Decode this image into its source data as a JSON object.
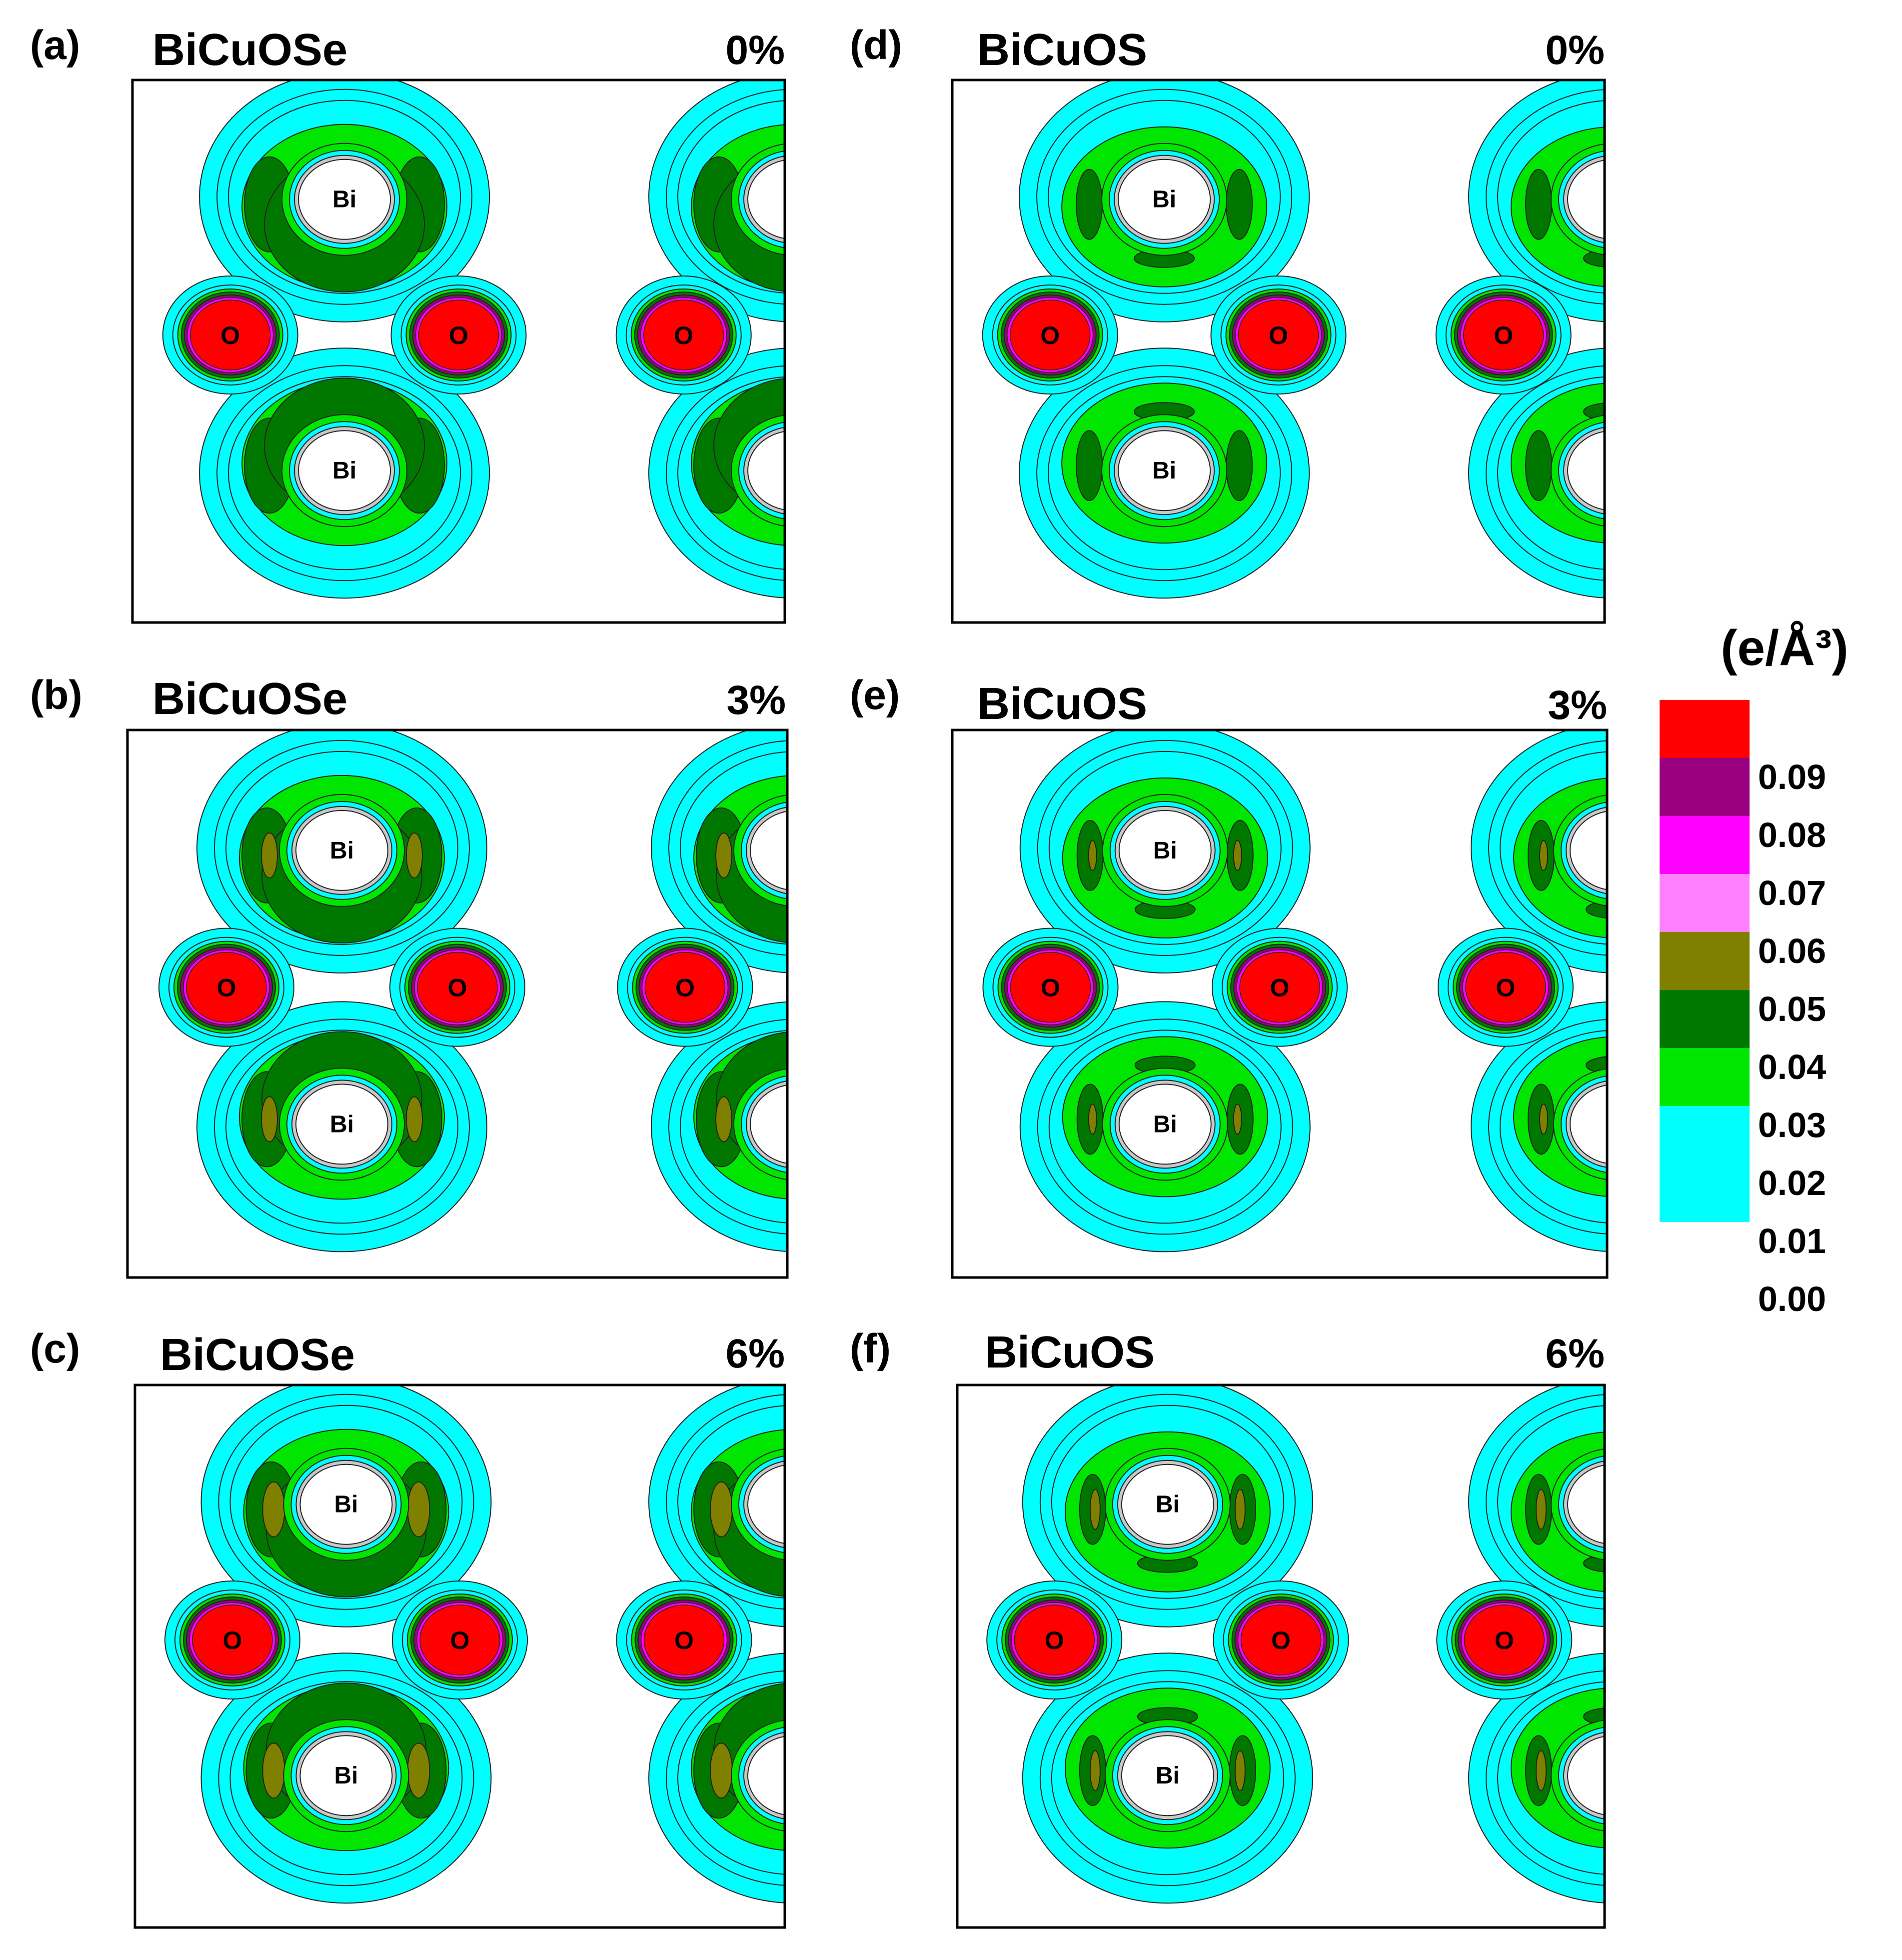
{
  "panels": [
    {
      "label": "(a)",
      "material": "BiCuOSe",
      "strain": "0%",
      "style": "se",
      "strain_level": 0
    },
    {
      "label": "(b)",
      "material": "BiCuOSe",
      "strain": "3%",
      "style": "se",
      "strain_level": 3
    },
    {
      "label": "(c)",
      "material": "BiCuOSe",
      "strain": "6%",
      "style": "se",
      "strain_level": 6
    },
    {
      "label": "(d)",
      "material": "BiCuOS",
      "strain": "0%",
      "style": "s",
      "strain_level": 0
    },
    {
      "label": "(e)",
      "material": "BiCuOS",
      "strain": "3%",
      "style": "s",
      "strain_level": 3
    },
    {
      "label": "(f)",
      "material": "BiCuOS",
      "strain": "6%",
      "style": "s",
      "strain_level": 6
    }
  ],
  "atom_labels": {
    "bi": "Bi",
    "o": "O"
  },
  "colorbar": {
    "unit": "(e/Å³)",
    "bands": [
      {
        "value": "0.09",
        "color": "#ff0000"
      },
      {
        "value": "0.08",
        "color": "#990080"
      },
      {
        "value": "0.07",
        "color": "#ff00ff"
      },
      {
        "value": "0.06",
        "color": "#ff80ff"
      },
      {
        "value": "0.05",
        "color": "#808000"
      },
      {
        "value": "0.04",
        "color": "#007800"
      },
      {
        "value": "0.03",
        "color": "#00e600"
      },
      {
        "value": "0.02",
        "color": "#00ffff"
      },
      {
        "value": "0.01",
        "color": "#00ffff"
      }
    ],
    "tick_labels": [
      "0.09",
      "0.08",
      "0.07",
      "0.06",
      "0.05",
      "0.04",
      "0.03",
      "0.02",
      "0.01",
      "0.00"
    ]
  }
}
